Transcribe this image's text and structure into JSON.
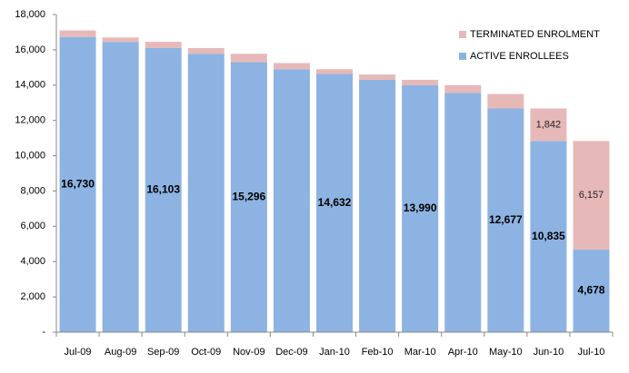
{
  "chart_data": {
    "type": "stacked-bar",
    "categories": [
      "Jul-09",
      "Aug-09",
      "Sep-09",
      "Oct-09",
      "Nov-09",
      "Dec-09",
      "Jan-10",
      "Feb-10",
      "Mar-10",
      "Apr-10",
      "May-10",
      "Jun-10",
      "Jul-10"
    ],
    "series": [
      {
        "name": "ACTIVE ENROLLEES",
        "color": "#8db3e2",
        "values": [
          16730,
          16450,
          16103,
          15780,
          15296,
          14900,
          14632,
          14300,
          13990,
          13550,
          12677,
          10835,
          4678
        ],
        "value_labels": [
          "16,730",
          null,
          "16,103",
          null,
          "15,296",
          null,
          "14,632",
          null,
          "13,990",
          null,
          "12,677",
          "10,835",
          "4,678"
        ]
      },
      {
        "name": "TERMINATED ENROLMENT",
        "color": "#e6b9b8",
        "values": [
          370,
          250,
          350,
          320,
          480,
          350,
          270,
          300,
          310,
          450,
          820,
          1842,
          6157
        ],
        "value_labels": [
          null,
          null,
          null,
          null,
          null,
          null,
          null,
          null,
          null,
          null,
          null,
          "1,842",
          "6,157"
        ]
      }
    ],
    "ylim": [
      0,
      18000
    ],
    "yticks": [
      {
        "value": 0,
        "label": "-"
      },
      {
        "value": 2000,
        "label": "2,000"
      },
      {
        "value": 4000,
        "label": "4,000"
      },
      {
        "value": 6000,
        "label": "6,000"
      },
      {
        "value": 8000,
        "label": "8,000"
      },
      {
        "value": 10000,
        "label": "10,000"
      },
      {
        "value": 12000,
        "label": "12,000"
      },
      {
        "value": 14000,
        "label": "14,000"
      },
      {
        "value": 16000,
        "label": "16,000"
      },
      {
        "value": 18000,
        "label": "18,000"
      }
    ],
    "legend": "top-right"
  }
}
